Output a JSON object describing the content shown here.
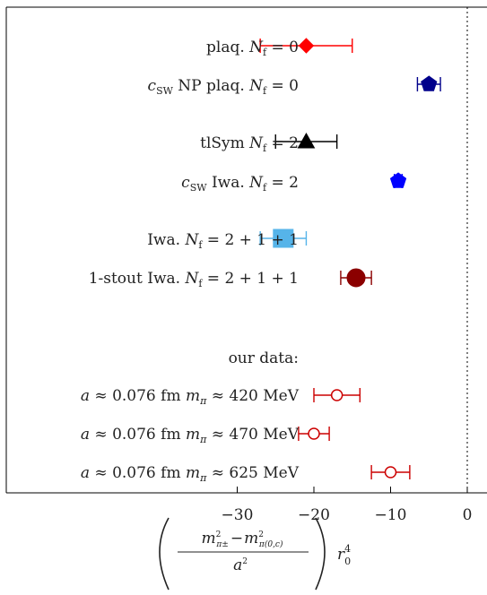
{
  "chart_data": {
    "type": "scatter",
    "orientation": "horizontal-error-bars",
    "xlabel_parts": {
      "num_a": "m",
      "num_a_sup": "2",
      "num_a_sub": "π±",
      "minus": "−",
      "num_b": "m",
      "num_b_sup": "2",
      "num_b_sub": "π(0,c)",
      "den": "a",
      "den_sup": "2",
      "tail": "r",
      "tail_sup": "4",
      "tail_sub": "0"
    },
    "xlim": [
      -40,
      3
    ],
    "xticks": [
      -30,
      -20,
      -10,
      0
    ],
    "xtick_labels": [
      "−30",
      "−20",
      "−10",
      "0"
    ],
    "reference_line_x": 0,
    "points": [
      {
        "label": "plaq.  N_f = 0",
        "x": -21,
        "xerr": 6,
        "marker": "diamond",
        "color": "#ff0000",
        "filled": true
      },
      {
        "label": "c_SW NP  plaq.  N_f = 0",
        "x": -5,
        "xerr": 1.5,
        "marker": "pentagon",
        "color": "#00008b",
        "filled": true
      },
      {
        "label": "tlSym  N_f = 2",
        "x": -21,
        "xerr": 4,
        "marker": "triangle",
        "color": "#000000",
        "filled": true
      },
      {
        "label": "c_SW  Iwa.  N_f = 2",
        "x": -9,
        "xerr": 0.5,
        "marker": "pentagon",
        "color": "#0000ff",
        "filled": true
      },
      {
        "label": "Iwa.  N_f = 2 + 1 + 1",
        "x": -24,
        "xerr": 3,
        "marker": "square",
        "color": "#56b4e9",
        "filled": true
      },
      {
        "label": "1-stout  Iwa.  N_f = 2 + 1 + 1",
        "x": -14.5,
        "xerr": 2,
        "marker": "circle",
        "color": "#8b0000",
        "filled": true
      },
      {
        "label": "a ≈ 0.076 fm m_π ≈ 420 MeV",
        "x": -17,
        "xerr": 3,
        "marker": "circle",
        "color": "#cc0000",
        "filled": false
      },
      {
        "label": "a ≈ 0.076 fm m_π ≈ 470 MeV",
        "x": -20,
        "xerr": 2,
        "marker": "circle",
        "color": "#cc0000",
        "filled": false
      },
      {
        "label": "a ≈ 0.076 fm m_π ≈ 625 MeV",
        "x": -10,
        "xerr": 2.5,
        "marker": "circle",
        "color": "#cc0000",
        "filled": false
      }
    ],
    "group_header": "our data:"
  },
  "labels": {
    "plaq": {
      "pre": "plaq.  ",
      "N": "N",
      "sub": "f",
      "post": " = 0"
    },
    "csw_np": {
      "c": "c",
      "csub": "SW",
      "mid": " NP  plaq.  ",
      "N": "N",
      "sub": "f",
      "post": " = 0"
    },
    "tlsym": {
      "pre": "tlSym  ",
      "N": "N",
      "sub": "f",
      "post": " = 2"
    },
    "csw_iwa": {
      "c": "c",
      "csub": "SW",
      "mid": "  Iwa.  ",
      "N": "N",
      "sub": "f",
      "post": " = 2"
    },
    "iwa": {
      "pre": "Iwa.  ",
      "N": "N",
      "sub": "f",
      "post": " = 2 + 1 + 1"
    },
    "stout": {
      "pre": "1-stout  Iwa.  ",
      "N": "N",
      "sub": "f",
      "post": " = 2 + 1 + 1"
    },
    "header": "our data:",
    "d1": {
      "a": "a",
      "mid": " ≈ 0.076 fm ",
      "m": "m",
      "msub": "π",
      "post": " ≈ 420 MeV"
    },
    "d2": {
      "a": "a",
      "mid": " ≈ 0.076 fm ",
      "m": "m",
      "msub": "π",
      "post": " ≈ 470 MeV"
    },
    "d3": {
      "a": "a",
      "mid": " ≈ 0.076 fm ",
      "m": "m",
      "msub": "π",
      "post": " ≈ 625 MeV"
    }
  }
}
